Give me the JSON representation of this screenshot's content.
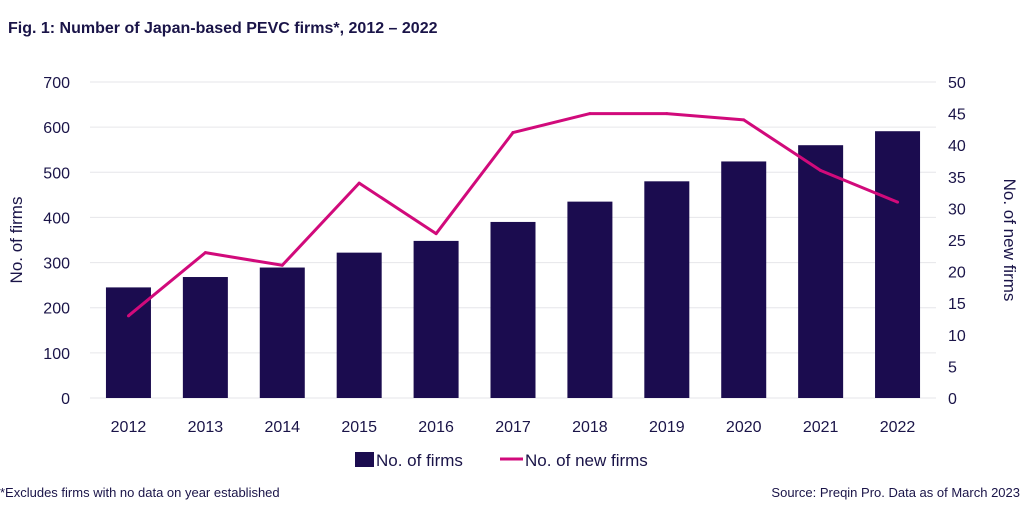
{
  "title": "Fig. 1: Number of Japan-based PEVC firms*, 2012 – 2022",
  "footnote": "*Excludes firms with no data on year established",
  "source": "Source: Preqin Pro. Data as of March 2023",
  "colors": {
    "bars": "#1b0c4f",
    "line": "#d10a7b",
    "grid": "#e6e6ea",
    "text": "#1a1448"
  },
  "chart_data": {
    "type": "bar",
    "categories": [
      "2012",
      "2013",
      "2014",
      "2015",
      "2016",
      "2017",
      "2018",
      "2019",
      "2020",
      "2021",
      "2022"
    ],
    "series": [
      {
        "name": "No. of firms",
        "type": "bar",
        "axis": "left",
        "values": [
          245,
          268,
          289,
          322,
          348,
          390,
          435,
          480,
          524,
          560,
          591
        ]
      },
      {
        "name": "No. of new firms",
        "type": "line",
        "axis": "right",
        "values": [
          13,
          23,
          21,
          34,
          26,
          42,
          45,
          45,
          44,
          36,
          31
        ]
      }
    ],
    "ylabel": "No. of firms",
    "y2label": "No. of new firms",
    "ylim": [
      0,
      700
    ],
    "y2lim": [
      0,
      50
    ],
    "yticks": [
      0,
      100,
      200,
      300,
      400,
      500,
      600,
      700
    ],
    "y2ticks": [
      0,
      5,
      10,
      15,
      20,
      25,
      30,
      35,
      40,
      45,
      50
    ],
    "grid": true,
    "legend": "bottom-center"
  }
}
